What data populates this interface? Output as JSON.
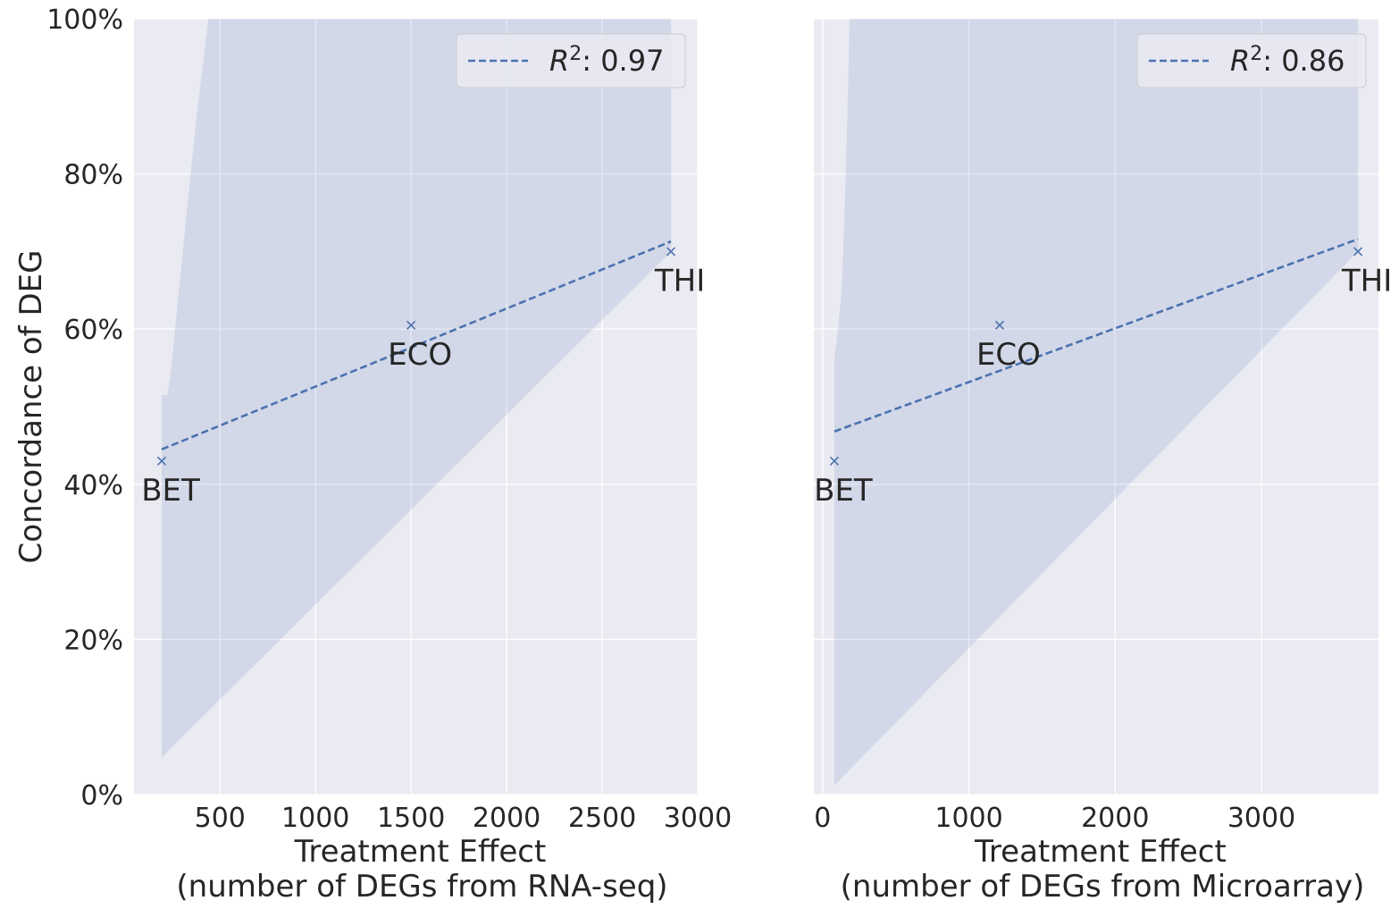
{
  "figure": {
    "ylabel": "Concordance of DEG",
    "ytick_labels": [
      "0%",
      "20%",
      "40%",
      "60%",
      "80%",
      "100%"
    ]
  },
  "chart_data": [
    {
      "type": "scatter",
      "xlabel_line1": "Treatment Effect",
      "xlabel_line2": "(number of DEGs from RNA-seq)",
      "ylabel": "Concordance of DEG",
      "xlim": [
        50,
        3000
      ],
      "ylim": [
        0,
        100
      ],
      "xticks": [
        500,
        1000,
        1500,
        2000,
        2500,
        3000
      ],
      "xtick_labels": [
        "500",
        "1000",
        "1500",
        "2000",
        "2500",
        "3000"
      ],
      "grid": true,
      "legend_position": "top-right",
      "legend": {
        "r2_prefix": "R",
        "r2_exp": "2",
        "r2_value": ": 0.97"
      },
      "points": [
        {
          "label": "BET",
          "x": 195,
          "y": 43
        },
        {
          "label": "ECO",
          "x": 1500,
          "y": 60.5
        },
        {
          "label": "THI",
          "x": 2860,
          "y": 70
        }
      ],
      "fit": {
        "x": [
          195,
          2860
        ],
        "y": [
          44.5,
          71.3
        ]
      },
      "ci_upper": [
        [
          195,
          51.5
        ],
        [
          225,
          51.5
        ],
        [
          245,
          55
        ],
        [
          285,
          65
        ],
        [
          330,
          76
        ],
        [
          380,
          88
        ],
        [
          440,
          100
        ],
        [
          2860,
          100
        ]
      ],
      "ci_lower": [
        [
          195,
          4.8
        ],
        [
          2860,
          70
        ]
      ]
    },
    {
      "type": "scatter",
      "xlabel_line1": "Treatment Effect",
      "xlabel_line2": "(number of DEGs from Microarray)",
      "ylabel": "",
      "xlim": [
        -60,
        3800
      ],
      "ylim": [
        0,
        100
      ],
      "xticks": [
        0,
        1000,
        2000,
        3000
      ],
      "xtick_labels": [
        "0",
        "1000",
        "2000",
        "3000"
      ],
      "grid": true,
      "legend_position": "top-right",
      "legend": {
        "r2_prefix": "R",
        "r2_exp": "2",
        "r2_value": ": 0.86"
      },
      "points": [
        {
          "label": "BET",
          "x": 80,
          "y": 43
        },
        {
          "label": "ECO",
          "x": 1210,
          "y": 60.5
        },
        {
          "label": "THI",
          "x": 3660,
          "y": 70
        }
      ],
      "fit": {
        "x": [
          80,
          3660
        ],
        "y": [
          46.8,
          71.6
        ]
      },
      "ci_upper": [
        [
          80,
          56
        ],
        [
          105,
          60
        ],
        [
          130,
          65
        ],
        [
          150,
          75
        ],
        [
          170,
          88
        ],
        [
          185,
          100
        ],
        [
          3660,
          100
        ]
      ],
      "ci_lower": [
        [
          80,
          1.2
        ],
        [
          3660,
          70
        ]
      ]
    }
  ],
  "colors": {
    "axes_bg": "#eaeaf2",
    "grid": "#ffffff",
    "line": "#4c72b0",
    "band": "#4c72b0",
    "text": "#262626",
    "legend_bg": "#eaeaf2",
    "legend_border": "#cccccc"
  }
}
